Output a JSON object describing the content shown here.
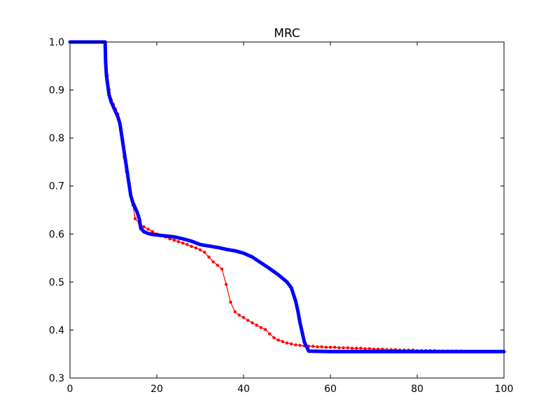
{
  "chart_data": {
    "type": "line",
    "title": "MRC",
    "xlabel": "",
    "ylabel": "",
    "xlim": [
      0,
      100
    ],
    "ylim": [
      0.3,
      1.0
    ],
    "xticks": [
      0,
      20,
      40,
      60,
      80,
      100
    ],
    "xtick_labels": [
      "0",
      "20",
      "40",
      "60",
      "80",
      "100"
    ],
    "yticks": [
      0.3,
      0.4,
      0.5,
      0.6,
      0.7,
      0.8,
      0.9,
      1.0
    ],
    "ytick_labels": [
      "0.3",
      "0.4",
      "0.5",
      "0.6",
      "0.7",
      "0.8",
      "0.9",
      "1.0"
    ],
    "grid": false,
    "series": [
      {
        "name": "red",
        "color": "#ff0000",
        "marker": "dot",
        "points": [
          [
            0,
            1.0
          ],
          [
            8,
            1.0
          ],
          [
            8.2,
            0.97
          ],
          [
            8.6,
            0.93
          ],
          [
            9,
            0.9
          ],
          [
            9.5,
            0.88
          ],
          [
            10,
            0.87
          ],
          [
            10.5,
            0.86
          ],
          [
            11,
            0.85
          ],
          [
            11.5,
            0.83
          ],
          [
            12,
            0.8
          ],
          [
            12.5,
            0.76
          ],
          [
            13,
            0.73
          ],
          [
            13.5,
            0.71
          ],
          [
            14,
            0.68
          ],
          [
            14.5,
            0.66
          ],
          [
            15,
            0.632
          ],
          [
            16,
            0.622
          ],
          [
            17,
            0.615
          ],
          [
            18,
            0.61
          ],
          [
            19,
            0.605
          ],
          [
            20,
            0.6
          ],
          [
            21,
            0.597
          ],
          [
            22,
            0.594
          ],
          [
            23,
            0.59
          ],
          [
            24,
            0.587
          ],
          [
            25,
            0.584
          ],
          [
            26,
            0.581
          ],
          [
            27,
            0.578
          ],
          [
            28,
            0.574
          ],
          [
            29,
            0.571
          ],
          [
            30,
            0.567
          ],
          [
            31,
            0.562
          ],
          [
            32,
            0.552
          ],
          [
            33,
            0.542
          ],
          [
            34,
            0.535
          ],
          [
            35,
            0.527
          ],
          [
            36,
            0.495
          ],
          [
            37,
            0.458
          ],
          [
            38,
            0.438
          ],
          [
            39,
            0.431
          ],
          [
            40,
            0.426
          ],
          [
            41,
            0.42
          ],
          [
            42,
            0.415
          ],
          [
            43,
            0.41
          ],
          [
            44,
            0.405
          ],
          [
            45,
            0.401
          ],
          [
            46,
            0.392
          ],
          [
            47,
            0.384
          ],
          [
            48,
            0.379
          ],
          [
            49,
            0.376
          ],
          [
            50,
            0.373
          ],
          [
            51,
            0.371
          ],
          [
            52,
            0.369
          ],
          [
            53,
            0.368
          ],
          [
            54,
            0.367
          ],
          [
            55,
            0.366
          ],
          [
            56,
            0.366
          ],
          [
            57,
            0.365
          ],
          [
            58,
            0.365
          ],
          [
            59,
            0.364
          ],
          [
            60,
            0.364
          ],
          [
            61,
            0.364
          ],
          [
            62,
            0.363
          ],
          [
            63,
            0.363
          ],
          [
            64,
            0.363
          ],
          [
            65,
            0.362
          ],
          [
            66,
            0.362
          ],
          [
            67,
            0.362
          ],
          [
            68,
            0.361
          ],
          [
            69,
            0.361
          ],
          [
            70,
            0.36
          ],
          [
            71,
            0.36
          ],
          [
            72,
            0.36
          ],
          [
            73,
            0.359
          ],
          [
            74,
            0.359
          ],
          [
            75,
            0.359
          ],
          [
            76,
            0.358
          ],
          [
            77,
            0.358
          ],
          [
            78,
            0.358
          ],
          [
            79,
            0.358
          ],
          [
            80,
            0.357
          ],
          [
            81,
            0.357
          ],
          [
            82,
            0.357
          ],
          [
            83,
            0.357
          ],
          [
            84,
            0.357
          ],
          [
            85,
            0.356
          ],
          [
            86,
            0.356
          ],
          [
            87,
            0.356
          ],
          [
            88,
            0.356
          ],
          [
            89,
            0.356
          ],
          [
            90,
            0.356
          ]
        ]
      },
      {
        "name": "blue",
        "color": "#0000ff",
        "marker": "dense",
        "points": [
          [
            0,
            1.0
          ],
          [
            8.1,
            1.0
          ],
          [
            8.2,
            0.96
          ],
          [
            8.4,
            0.93
          ],
          [
            8.7,
            0.91
          ],
          [
            9.0,
            0.89
          ],
          [
            9.5,
            0.875
          ],
          [
            10,
            0.865
          ],
          [
            10.5,
            0.855
          ],
          [
            11,
            0.845
          ],
          [
            11.5,
            0.83
          ],
          [
            12,
            0.8
          ],
          [
            12.5,
            0.77
          ],
          [
            13,
            0.74
          ],
          [
            13.5,
            0.71
          ],
          [
            14,
            0.68
          ],
          [
            14.5,
            0.665
          ],
          [
            15,
            0.655
          ],
          [
            15.5,
            0.645
          ],
          [
            16,
            0.63
          ],
          [
            16.3,
            0.612
          ],
          [
            17,
            0.605
          ],
          [
            18,
            0.601
          ],
          [
            19,
            0.599
          ],
          [
            20,
            0.598
          ],
          [
            22,
            0.596
          ],
          [
            24,
            0.594
          ],
          [
            26,
            0.59
          ],
          [
            28,
            0.585
          ],
          [
            30,
            0.578
          ],
          [
            32,
            0.575
          ],
          [
            34,
            0.572
          ],
          [
            36,
            0.568
          ],
          [
            38,
            0.565
          ],
          [
            40,
            0.56
          ],
          [
            42,
            0.552
          ],
          [
            44,
            0.54
          ],
          [
            46,
            0.528
          ],
          [
            48,
            0.515
          ],
          [
            50,
            0.5
          ],
          [
            51,
            0.488
          ],
          [
            52,
            0.46
          ],
          [
            52.5,
            0.44
          ],
          [
            53,
            0.415
          ],
          [
            53.5,
            0.395
          ],
          [
            54,
            0.375
          ],
          [
            55,
            0.356
          ],
          [
            60,
            0.355
          ],
          [
            70,
            0.355
          ],
          [
            80,
            0.355
          ],
          [
            90,
            0.355
          ],
          [
            100,
            0.355
          ]
        ]
      }
    ]
  }
}
